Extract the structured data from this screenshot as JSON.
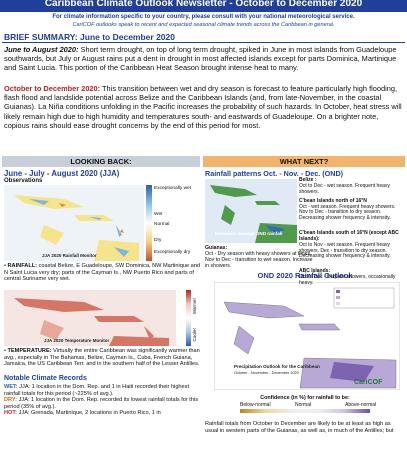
{
  "header": {
    "title": "Caribbean Climate Outlook Newsletter - October to December 2020",
    "note": "For climate information specific to your country, please consult with your national meteorological service.",
    "subnote": "CariCOF outlooks speak to recent and expected seasonal climate trends across the Caribbean in general."
  },
  "summary": {
    "heading": "BRIEF SUMMARY: June to December 2020",
    "p1_lead": "June to August 2020:",
    "p1": "Short term drought, on top of long term drought, spiked in June in most islands from Guadeloupe southwards, but July or August rains put a dent in drought in most affected islands except for parts Dominica, Martinique and Saint Lucia. This portion of the Caribbean Heat Season brought intense heat to many.",
    "p2_lead": "October to December 2020:",
    "p2": "This transition between wet and dry season is forecast to feature particularly high flooding, flash flood and landslide potential across Belize and the Caribbean Islands (and, from late-November, in the coastal Guianas). La Niña conditions unfolding in the Pacific increases the probability of such hazards. In October, heat stress will likely remain high due to high humidity and temperatures south- and eastwards of Guadeloupe. On a brighter note, copious rains should ease drought concerns by the end of this period for most."
  },
  "left": {
    "heading": "LOOKING BACK:",
    "title": "June - July - August 2020 (JJA)",
    "subtitle": "Observations",
    "rain_legend": [
      "Exceptionally wet",
      "Wet",
      "Normal",
      "Dry",
      "Exceptionally dry"
    ],
    "rain_caption": "JJA 2020 Rainfall Monitor",
    "rain_lead": "RAINFALL:",
    "rain_text": "coastal Belize, E Guadeloupe, SW Dominica, NW Martinique and N Saint Lucia very dry; parts of the Cayman Is., NW Puerto Rico and parts of central Suriname very wet.",
    "temp_legend": [
      "Warmer",
      "Cooler"
    ],
    "temp_caption": "JJA 2020 Temperature Monitor",
    "temp_lead": "TEMPERATURE:",
    "temp_text": "Virtually the entire Caribbean was significantly warmer than avg., especially in The Bahamas, Belize, Cayman Is., Cuba, French Guiana, Jamaica, the US Caribbean Terr. and in the southern half of the Lesser Antilles.",
    "records_title": "Notable Climate Records",
    "records": [
      {
        "tag": "WET:",
        "text": "JJA: 1 location in the Dom. Rep. and 1 in Haiti recorded their highest rainfall totals for this period (~225% of avg.)."
      },
      {
        "tag": "DRY:",
        "text": "JJA: 1 location in the Dom. Rep. recorded its lowest rainfall totals for this period (35% of avg.)."
      },
      {
        "tag": "HOT:",
        "text": "JJA: Grenada, Martinique, 2 locations in Puerto Rico, 1 in"
      }
    ]
  },
  "right": {
    "heading": "WHAT NEXT?",
    "title": "Rainfall patterns Oct. - Nov. - Dec. (OND)",
    "map_label": "Historical average OND rainfall",
    "regions": [
      {
        "name": "Belize :",
        "text": "Oct to Dec - wet season. Frequent heavy showers."
      },
      {
        "name": "C'bean Islands north of 16°N",
        "text": "Oct - wet season. Frequent heavy showers. Nov to Dec - transition to dry season. Decreasing shower frequency & intensity."
      },
      {
        "name": "C'bean Islands south of 16°N (except ABC Islands):",
        "text": "Oct to Nov - wet season. Frequent heavy showers. Dec - transition to dry season. Decreasing shower frequency & intensity."
      },
      {
        "name": "ABC Islands:",
        "text": "Oct to Dec - frequent showers, occasionally heavy."
      }
    ],
    "guianas_name": "Guianas:",
    "guianas_text": "Oct - Dry season with heavy showers at times. Nov to Dec - transition to wet season. Increase in showers.",
    "outlook_title": "OND 2020 Rainfall Outlook",
    "outlook_map_title": "Precipitation Outlook for the Caribbean",
    "outlook_map_sub": "October - November - December 2020",
    "logo": "CariCOF",
    "confidence": "Confidence (in %) for rainfall to be:",
    "conf_labels": [
      "Below-normal",
      "Normal",
      "Above-normal"
    ],
    "bottom": "Rainfall totals from October to December are likely to be at least as high as usual in western parts of the Guianas, as well as, in much of the Antilles; but"
  }
}
